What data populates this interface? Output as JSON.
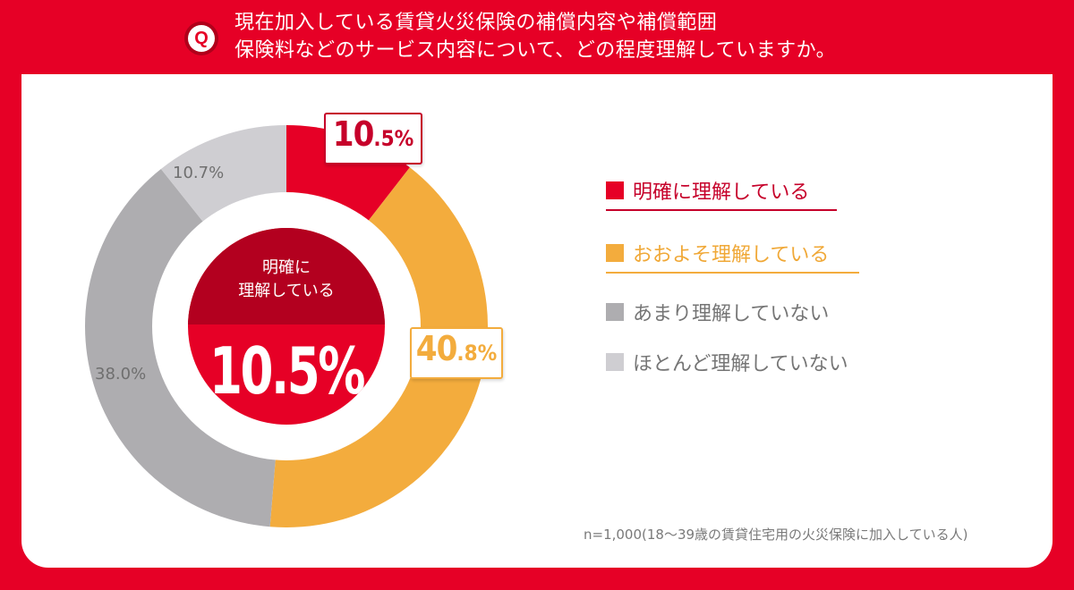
{
  "header": {
    "q_badge": "Q",
    "question_line1": "現在加入している賃貸火災保険の補償内容や補償範囲",
    "question_line2": "保険料などのサービス内容について、どの程度理解していますか。"
  },
  "center": {
    "title_line1": "明確に",
    "title_line2": "理解している",
    "value": "10.5%"
  },
  "callouts": {
    "red": {
      "big": "10",
      "small": ".5%"
    },
    "orange": {
      "big": "40",
      "small": ".8%"
    }
  },
  "segment_labels": {
    "mostly_not": "38.0%",
    "hardly": "10.7%"
  },
  "legend": [
    {
      "label": "明確に理解している",
      "color": "#e60026"
    },
    {
      "label": "おおよそ理解している",
      "color": "#f3ac3d"
    },
    {
      "label": "あまり理解していない",
      "color": "#aeadb0"
    },
    {
      "label": "ほとんど理解していない",
      "color": "#cfced2"
    }
  ],
  "note": "n=1,000(18～39歳の賃貸住宅用の火災保険に加入している人)",
  "colors": {
    "brand_red": "#e60026",
    "orange": "#f3ac3d",
    "gray_dark": "#aeadb0",
    "gray_light": "#cfced2"
  },
  "chart_data": {
    "type": "pie",
    "title": "現在加入している賃貸火災保険の補償内容や補償範囲 保険料などのサービス内容について、どの程度理解していますか。",
    "categories": [
      "明確に理解している",
      "おおよそ理解している",
      "あまり理解していない",
      "ほとんど理解していない"
    ],
    "values": [
      10.5,
      40.8,
      38.0,
      10.7
    ],
    "unit": "%",
    "donut": true,
    "start_angle": "12 o'clock, clockwise",
    "center_label": "明確に理解している 10.5%",
    "legend_position": "right",
    "note": "n=1,000(18～39歳の賃貸住宅用の火災保険に加入している人)"
  }
}
